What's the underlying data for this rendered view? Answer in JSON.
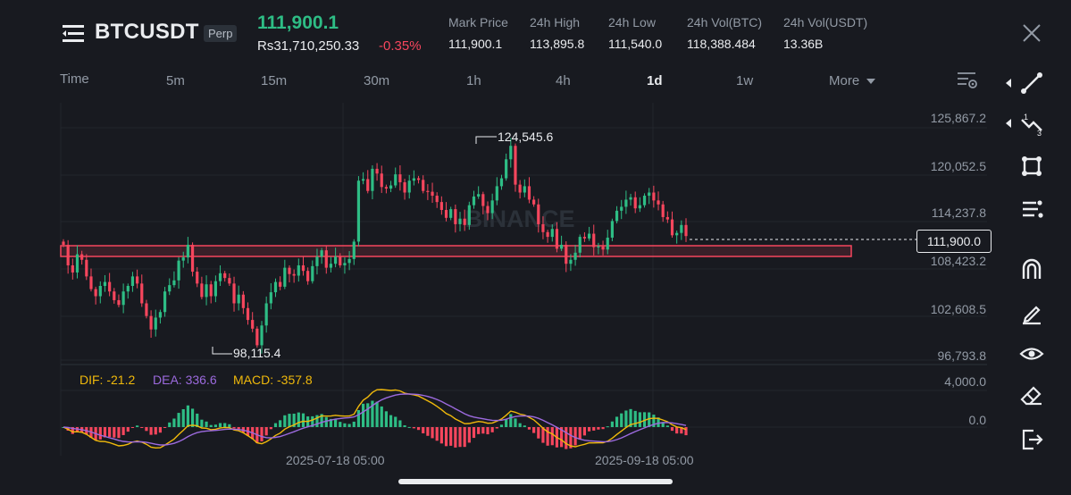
{
  "header": {
    "symbol": "BTCUSDT",
    "contract_badge": "Perp",
    "last_price": "111,900.1",
    "fiat_price": "Rs31,710,250.33",
    "change_pct": "-0.35%",
    "stats": [
      {
        "label": "Mark Price",
        "value": "111,900.1"
      },
      {
        "label": "24h High",
        "value": "113,895.8"
      },
      {
        "label": "24h Low",
        "value": "111,540.0"
      },
      {
        "label": "24h Vol(BTC)",
        "value": "118,388.484"
      },
      {
        "label": "24h Vol(USDT)",
        "value": "13.36B"
      }
    ]
  },
  "intervals": {
    "items": [
      "Time",
      "5m",
      "15m",
      "30m",
      "1h",
      "4h",
      "1d",
      "1w",
      "More"
    ],
    "active": "1d"
  },
  "icons": {
    "menu": "menu-icon",
    "close": "close-icon",
    "settings": "chart-settings-icon",
    "tools": [
      "trend-line-icon",
      "fib-tool-icon",
      "shape-tool-icon",
      "indicator-list-icon",
      "magnet-icon",
      "pencil-icon",
      "eye-icon",
      "eraser-icon",
      "exit-icon"
    ]
  },
  "colors": {
    "up": "#2ebd85",
    "down": "#f6465d",
    "background": "#181a20",
    "dif": "#f0b90b",
    "dea": "#9c6ade",
    "zone": "#f6465d"
  },
  "chart_data": {
    "type": "candlestick",
    "watermark": "BINANCE",
    "price_axis": {
      "ticks": [
        "125,867.2",
        "120,052.5",
        "114,237.8",
        "108,423.2",
        "102,608.5",
        "96,793.8"
      ],
      "current": "111,900.0"
    },
    "annotations": {
      "high": "124,545.6",
      "low": "98,115.4"
    },
    "support_zone": [
      110500,
      111900
    ],
    "time_axis": [
      "2025-07-18 05:00",
      "2025-09-18 05:00"
    ],
    "macd": {
      "dif_label": "DIF: -21.2",
      "dea_label": "DEA: 336.6",
      "macd_label": "MACD: -357.8",
      "axis": [
        "4,000.0",
        "0.0"
      ]
    },
    "closes": [
      110800,
      108200,
      107300,
      109600,
      108900,
      106800,
      105200,
      104300,
      105600,
      106100,
      104900,
      103800,
      103200,
      104900,
      105600,
      106800,
      105900,
      103400,
      101800,
      100100,
      101600,
      102300,
      104900,
      105700,
      106300,
      108800,
      109200,
      110800,
      107400,
      105900,
      104200,
      105800,
      104300,
      106200,
      107200,
      106600,
      105900,
      103400,
      104500,
      102800,
      101300,
      100200,
      98100,
      100600,
      103400,
      104800,
      106100,
      105500,
      107900,
      107100,
      106900,
      108200,
      107500,
      106200,
      108100,
      109300,
      110100,
      107900,
      108400,
      109300,
      108200,
      108500,
      109000,
      111200,
      118900,
      119100,
      117600,
      120400,
      119800,
      118100,
      117900,
      118300,
      119700,
      118700,
      117400,
      118900,
      119200,
      119000,
      117600,
      117500,
      117000,
      116200,
      115200,
      114200,
      115300,
      113400,
      114100,
      113300,
      115800,
      116900,
      117200,
      115700,
      114800,
      116400,
      118200,
      119200,
      121600,
      123300,
      118400,
      117400,
      118200,
      116500,
      115900,
      113400,
      112400,
      111800,
      112800,
      110300,
      110800,
      108400,
      108900,
      109800,
      111800,
      111600,
      112200,
      110500,
      110600,
      110200,
      111700,
      113800,
      115100,
      115600,
      116500,
      116800,
      115400,
      115800,
      117000,
      117400,
      116400,
      115900,
      114300,
      114000,
      112000,
      112300,
      113300,
      111900
    ]
  }
}
